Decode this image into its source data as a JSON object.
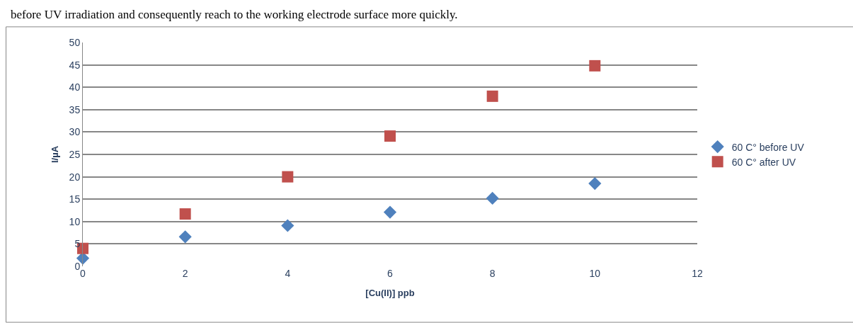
{
  "chart_data": {
    "type": "scatter",
    "xlabel": "[Cu(II)] ppb",
    "ylabel": "I/µA",
    "annotations": [
      "before UV irradiation and consequently reach to the working electrode surface more quickly."
    ],
    "xlim": [
      0,
      12
    ],
    "xticks": [
      0,
      2,
      4,
      6,
      8,
      10,
      12
    ],
    "ylim": [
      0,
      50
    ],
    "yticks": [
      0,
      5,
      10,
      15,
      20,
      25,
      30,
      35,
      40,
      45,
      50
    ],
    "grid": "y",
    "legend": "right",
    "series": [
      {
        "name": "60 C° before UV",
        "color": "#4f81bd",
        "marker": "diamond",
        "x": [
          0,
          2,
          4,
          6,
          8,
          10
        ],
        "values": [
          1.8,
          6.6,
          9.1,
          12.1,
          15.2,
          18.5
        ]
      },
      {
        "name": "60 C° after UV",
        "color": "#c0504d",
        "marker": "square",
        "x": [
          0,
          2,
          4,
          6,
          8,
          10
        ],
        "values": [
          4.0,
          11.7,
          20.0,
          29.1,
          38.0,
          44.8
        ]
      }
    ]
  }
}
